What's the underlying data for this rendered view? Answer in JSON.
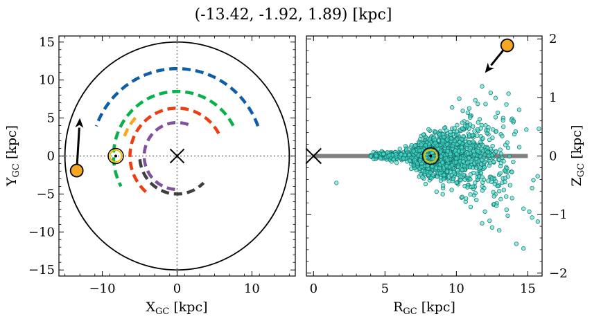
{
  "figure": {
    "title": "(-13.42, -1.92, 1.89) [kpc]"
  },
  "colors": {
    "axis": "#000000",
    "scatter_fill": "#40e0d0",
    "scatter_edge": "#1a6f66",
    "object_marker": "#f5a623",
    "sun_marker": "#f0c000",
    "disk_band": "#808080",
    "center_cross": "#000000",
    "guide_lines": "#808080"
  },
  "chart_data": [
    {
      "type": "line",
      "panel": "left",
      "xlabel": "X",
      "xlabel_sub": "GC",
      "xlabel_unit": " [kpc]",
      "ylabel": "Y",
      "ylabel_sub": "GC",
      "ylabel_unit": " [kpc]",
      "xlim": [
        -15.8,
        15.8
      ],
      "ylim": [
        -15.8,
        15.8
      ],
      "xticks": [
        -10,
        0,
        10
      ],
      "xtick_labels": [
        "−10",
        "0",
        "10"
      ],
      "yticks": [
        -15,
        -10,
        -5,
        0,
        5,
        10,
        15
      ],
      "ytick_labels": [
        "−15",
        "−10",
        "−5",
        "0",
        "5",
        "10",
        "15"
      ],
      "boundary_circle_radius": 15,
      "guide_lines": {
        "x": 0,
        "y": 0
      },
      "galactic_center": [
        0,
        0
      ],
      "sun": [
        -8.2,
        0
      ],
      "object_position": [
        -13.42,
        -1.92
      ],
      "arrow": {
        "from": [
          -13.42,
          -1.92
        ],
        "to": [
          -13.0,
          5.0
        ]
      },
      "arcs": [
        {
          "color": "#0f5fa8",
          "radius": 11.5,
          "start_deg": 20,
          "end_deg": 160
        },
        {
          "color": "#0ab04b",
          "radius": 8.5,
          "start_deg": 28,
          "end_deg": 208
        },
        {
          "color": "#ec3d13",
          "radius": 6.3,
          "start_deg": 28,
          "end_deg": 233
        },
        {
          "color": "#7e539a",
          "radius": 4.4,
          "start_deg": 70,
          "end_deg": 275
        },
        {
          "color": "#404040",
          "radius": 5.0,
          "start_deg": 185,
          "end_deg": 315
        },
        {
          "color": "#f5a623",
          "radius": 7.5,
          "start_deg": 138,
          "end_deg": 160
        }
      ]
    },
    {
      "type": "scatter",
      "panel": "right",
      "xlabel": "R",
      "xlabel_sub": "GC",
      "xlabel_unit": " [kpc]",
      "ylabel": "Z",
      "ylabel_sub": "GC",
      "ylabel_unit": " [kpc]",
      "xlim": [
        -0.5,
        16
      ],
      "ylim": [
        -2.05,
        2.05
      ],
      "xticks": [
        0,
        5,
        10,
        15
      ],
      "xtick_labels": [
        "0",
        "5",
        "10",
        "15"
      ],
      "yticks": [
        -2,
        -1,
        0,
        1,
        2
      ],
      "ytick_labels": [
        "−2",
        "−1",
        "0",
        "1",
        "2"
      ],
      "disk_band": {
        "x": [
          0,
          15
        ],
        "z": 0
      },
      "galactic_center": [
        0,
        0
      ],
      "sun": [
        8.2,
        0
      ],
      "object_position": [
        13.56,
        1.89
      ],
      "arrow": {
        "from": [
          13.56,
          1.89
        ],
        "to": [
          12.0,
          1.42
        ]
      },
      "n_points": 1500,
      "points": [
        [
          1.6,
          -0.46
        ],
        [
          11.8,
          1.19
        ],
        [
          12.4,
          1.08
        ],
        [
          13.5,
          0.88
        ],
        [
          14.4,
          0.79
        ],
        [
          13.0,
          -0.6
        ],
        [
          13.9,
          -0.72
        ],
        [
          14.7,
          -0.9
        ],
        [
          15.1,
          -0.95
        ],
        [
          11.8,
          -1.15
        ],
        [
          12.5,
          -1.22
        ],
        [
          13.0,
          -1.27
        ],
        [
          14.2,
          -1.5
        ],
        [
          14.7,
          -1.58
        ],
        [
          15.3,
          -1.05
        ],
        [
          15.7,
          -1.12
        ],
        [
          11.0,
          -0.87
        ],
        [
          12.0,
          -0.95
        ],
        [
          13.6,
          -1.02
        ],
        [
          10.2,
          0.98
        ],
        [
          9.7,
          0.83
        ],
        [
          10.8,
          0.74
        ],
        [
          11.5,
          0.89
        ],
        [
          12.9,
          0.74
        ],
        [
          14.0,
          0.6
        ],
        [
          14.9,
          0.45
        ],
        [
          15.3,
          -0.55
        ],
        [
          11.4,
          -0.75
        ],
        [
          12.8,
          -0.85
        ],
        [
          10.4,
          -0.7
        ]
      ]
    }
  ]
}
